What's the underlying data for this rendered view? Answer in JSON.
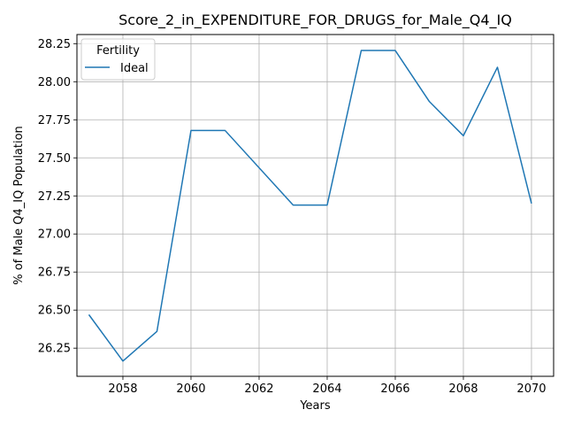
{
  "chart_data": {
    "type": "line",
    "title": "Score_2_in_EXPENDITURE_FOR_DRUGS_for_Male_Q4_IQ",
    "xlabel": "Years",
    "ylabel": "% of Male Q4_IQ Population",
    "xlim": [
      2056.65,
      2070.65
    ],
    "ylim": [
      26.065,
      28.31
    ],
    "xticks": [
      2058,
      2060,
      2062,
      2064,
      2066,
      2068,
      2070
    ],
    "yticks": [
      26.25,
      26.5,
      26.75,
      27.0,
      27.25,
      27.5,
      27.75,
      28.0,
      28.25
    ],
    "ytick_labels": [
      "26.25",
      "26.50",
      "26.75",
      "27.00",
      "27.25",
      "27.50",
      "27.75",
      "28.00",
      "28.25"
    ],
    "grid": true,
    "legend": {
      "title": "Fertility",
      "placement": "top-left"
    },
    "series": [
      {
        "name": "Ideal",
        "color": "#1f77b4",
        "x": [
          2057,
          2058,
          2059,
          2060,
          2061,
          2063,
          2064,
          2065,
          2066,
          2067,
          2068,
          2069,
          2070
        ],
        "y": [
          26.47,
          26.165,
          26.36,
          27.68,
          27.68,
          27.19,
          27.19,
          28.205,
          28.205,
          27.87,
          27.645,
          28.095,
          27.2
        ]
      }
    ]
  }
}
